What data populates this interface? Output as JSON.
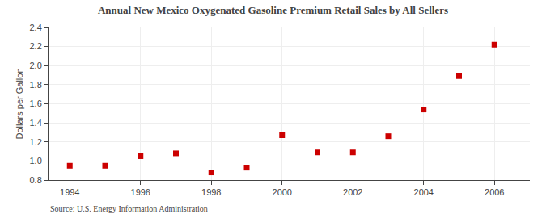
{
  "chart_data": {
    "type": "scatter",
    "title": "Annual New Mexico Oxygenated Gasoline Premium Retail Sales by All Sellers",
    "ylabel": "Dollars per Gallon",
    "annotations": [
      "Source: U.S. Energy Information Administration"
    ],
    "x": [
      1994,
      1995,
      1996,
      1997,
      1998,
      1999,
      2000,
      2001,
      2002,
      2003,
      2004,
      2005,
      2006
    ],
    "values": [
      0.95,
      0.95,
      1.05,
      1.08,
      0.88,
      0.93,
      1.27,
      1.09,
      1.09,
      1.26,
      1.54,
      1.89,
      2.22
    ],
    "color": "#cc0000",
    "marker": "square",
    "xlim": [
      1993.4,
      2007.0
    ],
    "xticks": [
      1994,
      1996,
      1998,
      2000,
      2002,
      2004,
      2006
    ],
    "ylim": [
      0.8,
      2.4
    ],
    "yticks": [
      0.8,
      {
        "value": 1.0,
        "label": "1.0"
      },
      1.2,
      1.4,
      1.6,
      1.8,
      {
        "value": 2.0,
        "label": "2.0"
      },
      2.2,
      2.4
    ],
    "grid": true
  }
}
